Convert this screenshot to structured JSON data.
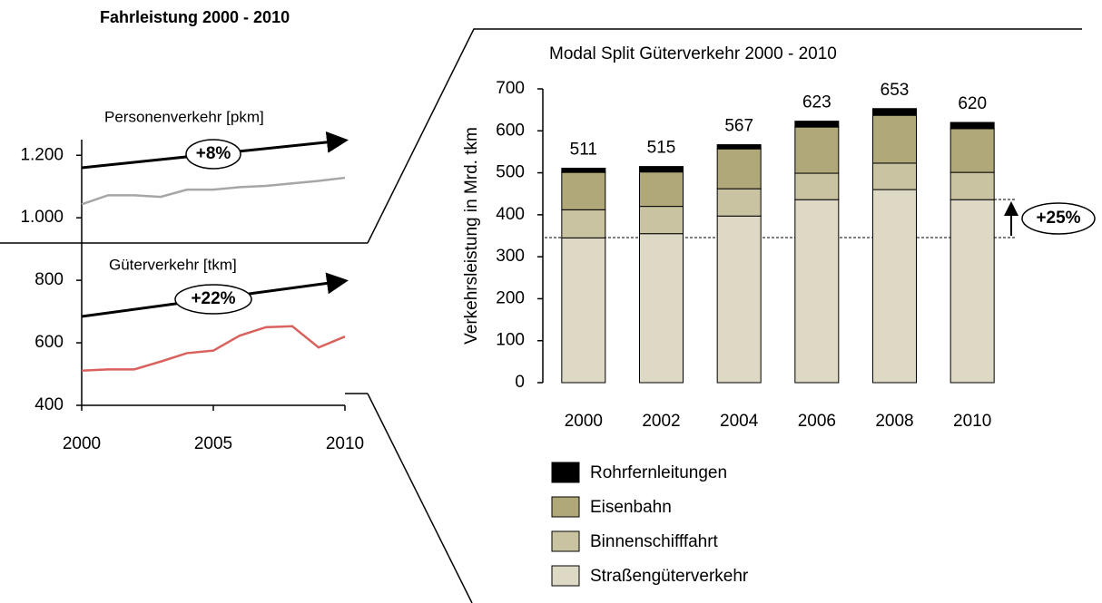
{
  "chart_data": [
    {
      "type": "line",
      "title": "Fahrleistung 2000 - 2010",
      "x": [
        2000,
        2001,
        2002,
        2003,
        2004,
        2005,
        2006,
        2007,
        2008,
        2009,
        2010
      ],
      "series": [
        {
          "name": "Personenverkehr [pkm]",
          "color": "#a6a6a6",
          "values": [
            1043,
            1072,
            1072,
            1067,
            1090,
            1090,
            1098,
            1102,
            1110,
            1118,
            1128
          ]
        },
        {
          "name": "Güterverkehr [tkm]",
          "color": "#d9625e",
          "values": [
            511,
            515,
            515,
            540,
            567,
            575,
            623,
            650,
            653,
            585,
            620
          ]
        }
      ],
      "annotations": [
        "+8%",
        "+22%"
      ],
      "xlim": [
        2000,
        2010
      ],
      "xticks": [
        2000,
        2005,
        2010
      ],
      "ylim": [
        400,
        1250
      ],
      "yticks": [
        400,
        600,
        800,
        {
          "value": 1000,
          "label": "1.000"
        },
        {
          "value": 1200,
          "label": "1.200"
        }
      ]
    },
    {
      "type": "bar",
      "title": "Modal Split Güterverkehr 2000 - 2010",
      "y_label": "Verkehrsleistung in Mrd. tkm",
      "categories": [
        "2000",
        "2002",
        "2004",
        "2006",
        "2008",
        "2010"
      ],
      "stacked": true,
      "series": [
        {
          "name": "Straßengüterverkehr",
          "color": "#ddd9c4",
          "values": [
            345,
            355,
            397,
            436,
            460,
            436
          ]
        },
        {
          "name": "Binnenschifffahrt",
          "color": "#c9c3a1",
          "values": [
            67,
            65,
            65,
            63,
            63,
            65
          ]
        },
        {
          "name": "Eisenbahn",
          "color": "#b1a87a",
          "values": [
            89,
            82,
            95,
            110,
            114,
            104
          ]
        },
        {
          "name": "Rohrfernleitungen",
          "color": "#000000",
          "values": [
            10,
            13,
            10,
            14,
            16,
            15
          ]
        }
      ],
      "totals": [
        511,
        515,
        567,
        623,
        653,
        620
      ],
      "annotations": [
        "+25%"
      ],
      "ylim": [
        0,
        700
      ],
      "yticks": [
        0,
        100,
        200,
        300,
        400,
        500,
        600,
        700
      ]
    }
  ]
}
